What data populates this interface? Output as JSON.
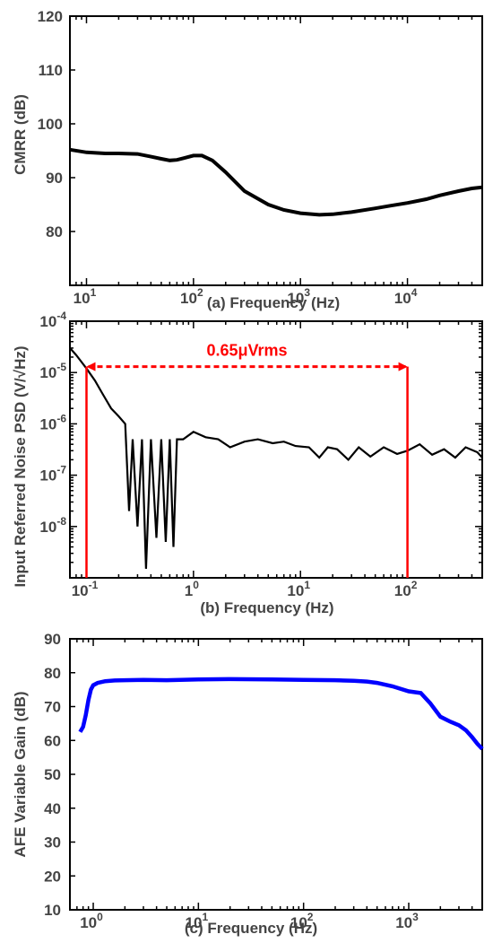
{
  "chart_data": [
    {
      "type": "line",
      "xlabel": "(a) Frequency (Hz)",
      "ylabel": "CMRR (dB)",
      "x_scale": "log",
      "xlim": [
        7,
        50000
      ],
      "ylim": [
        70,
        120
      ],
      "yticks": [
        "120",
        "110",
        "100",
        "90",
        "80"
      ],
      "xticks": [
        {
          "base": "10",
          "exp": "1"
        },
        {
          "base": "10",
          "exp": "2"
        },
        {
          "base": "10",
          "exp": "3"
        },
        {
          "base": "10",
          "exp": "4"
        }
      ],
      "series": [
        {
          "color": "#000000",
          "x": [
            7,
            10,
            15,
            20,
            30,
            40,
            50,
            60,
            70,
            80,
            100,
            120,
            150,
            200,
            300,
            500,
            700,
            1000,
            1500,
            2000,
            3000,
            5000,
            7000,
            10000,
            15000,
            20000,
            30000,
            40000,
            50000
          ],
          "y": [
            95.2,
            94.7,
            94.5,
            94.5,
            94.4,
            93.9,
            93.5,
            93.2,
            93.3,
            93.6,
            94.1,
            94.1,
            93.2,
            91.0,
            87.5,
            85.0,
            84.0,
            83.4,
            83.1,
            83.2,
            83.6,
            84.3,
            84.8,
            85.3,
            86.0,
            86.7,
            87.5,
            88.0,
            88.2
          ]
        }
      ]
    },
    {
      "type": "line",
      "title": "",
      "xlabel": "(b) Frequency (Hz)",
      "ylabel": "Input Referred Noise PSD (V/√Hz)",
      "x_scale": "log",
      "y_scale": "log",
      "xlim": [
        0.07,
        500
      ],
      "ylim": [
        1e-09,
        0.0001
      ],
      "yticks": [
        {
          "base": "10",
          "exp": "-4"
        },
        {
          "base": "10",
          "exp": "-5"
        },
        {
          "base": "10",
          "exp": "-6"
        },
        {
          "base": "10",
          "exp": "-7"
        },
        {
          "base": "10",
          "exp": "-8"
        }
      ],
      "xticks": [
        {
          "base": "10",
          "exp": "-1"
        },
        {
          "base": "1",
          "exp": "0"
        },
        {
          "base": "10",
          "exp": "1"
        },
        {
          "base": "10",
          "exp": "2"
        }
      ],
      "annotation": {
        "text": "0.65μVrms",
        "color": "#ff0000",
        "x_from": 0.1,
        "x_to": 100,
        "y": 1.3e-05
      },
      "series": [
        {
          "color": "#000000",
          "x": [
            0.07,
            0.08,
            0.09,
            0.1,
            0.12,
            0.14,
            0.17,
            0.2,
            0.23,
            0.25,
            0.27,
            0.3,
            0.33,
            0.36,
            0.4,
            0.45,
            0.5,
            0.55,
            0.6,
            0.65,
            0.7,
            0.8,
            1.0,
            1.3,
            1.7,
            2.2,
            3.0,
            4.0,
            5.5,
            7.0,
            9.0,
            12,
            15,
            18,
            22,
            28,
            35,
            45,
            60,
            80,
            100,
            130,
            170,
            220,
            280,
            350,
            450,
            500
          ],
          "y": [
            3e-05,
            2.2e-05,
            1.6e-05,
            1.2e-05,
            7e-06,
            4e-06,
            2e-06,
            1.4e-06,
            1e-06,
            2e-08,
            5e-07,
            1e-08,
            5e-07,
            1.5e-09,
            5e-07,
            6e-09,
            5e-07,
            5e-09,
            5e-07,
            4e-09,
            5e-07,
            5e-07,
            7e-07,
            5.5e-07,
            5e-07,
            3.5e-07,
            4.5e-07,
            5e-07,
            4.2e-07,
            4.5e-07,
            3.7e-07,
            3.5e-07,
            2.2e-07,
            3.5e-07,
            3.2e-07,
            2e-07,
            3.5e-07,
            2.3e-07,
            3.5e-07,
            2.6e-07,
            3e-07,
            4e-07,
            2.5e-07,
            3.2e-07,
            2.2e-07,
            3.5e-07,
            2.8e-07,
            2.2e-07
          ]
        }
      ]
    },
    {
      "type": "line",
      "xlabel": "(c) Frequency (Hz)",
      "ylabel": "AFE Variable Gain (dB)",
      "x_scale": "log",
      "xlim": [
        0.6,
        5000
      ],
      "ylim": [
        10,
        90
      ],
      "yticks": [
        "90",
        "80",
        "70",
        "60",
        "50",
        "40",
        "30",
        "20",
        "10"
      ],
      "xticks": [
        {
          "base": "10",
          "exp": "0"
        },
        {
          "base": "10",
          "exp": "1"
        },
        {
          "base": "10",
          "exp": "2"
        },
        {
          "base": "10",
          "exp": "3"
        }
      ],
      "series": [
        {
          "color": "#0000ff",
          "x": [
            0.75,
            0.8,
            0.85,
            0.9,
            0.95,
            1.0,
            1.1,
            1.3,
            1.6,
            2,
            3,
            5,
            10,
            20,
            50,
            100,
            200,
            300,
            400,
            500,
            700,
            1000,
            1300,
            1600,
            2000,
            2500,
            3000,
            3500,
            4000,
            4500,
            5000
          ],
          "y": [
            62.5,
            64,
            67.5,
            72,
            75,
            76.3,
            77,
            77.5,
            77.7,
            77.8,
            77.9,
            77.8,
            78,
            78.1,
            78,
            77.9,
            77.8,
            77.6,
            77.4,
            77,
            76,
            74.5,
            74,
            71,
            67,
            65.5,
            64.5,
            63,
            61,
            59,
            57.5
          ]
        }
      ]
    }
  ]
}
